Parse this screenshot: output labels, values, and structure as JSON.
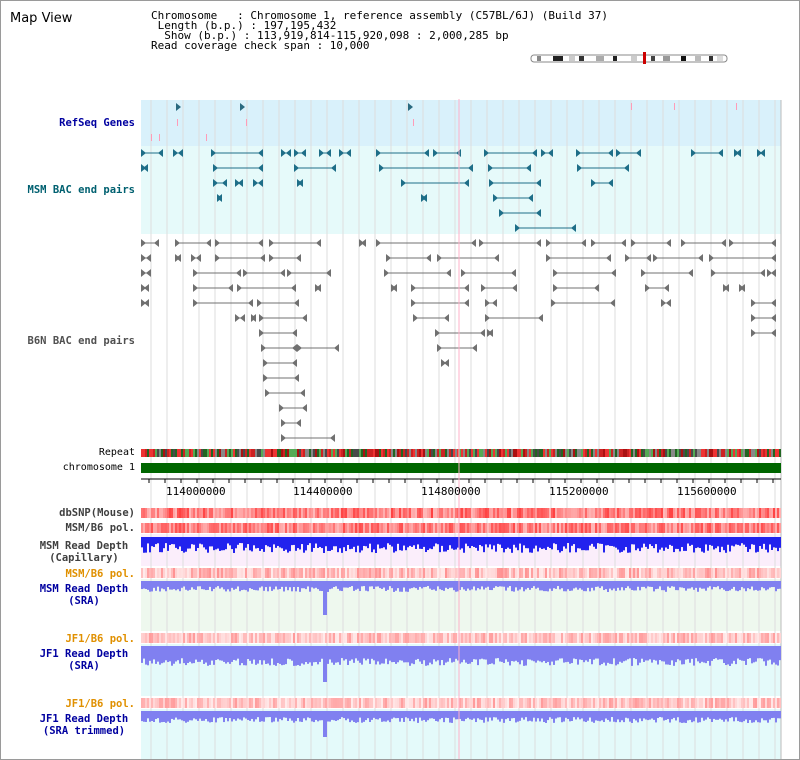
{
  "title": "Map View",
  "info": {
    "line1": "Chromosome   : Chromosome 1, reference assembly (C57BL/6J) (Build 37)",
    "line2": " Length (b.p.) : 197,195,432",
    "line3": "  Show (b.p.) : 113,919,814-115,920,098 : 2,000,285 bp",
    "line4": "Read coverage check span : 10,000"
  },
  "labels": {
    "refseq": "RefSeq Genes",
    "msm_bac": "MSM BAC end pairs",
    "b6n_bac": "B6N BAC end pairs",
    "repeat": "Repeat",
    "chromosome": "chromosome 1",
    "dbsnp": "dbSNP(Mouse)",
    "msm_b6_pol_1": "MSM/B6 pol.",
    "msm_depth_cap_1": "MSM Read Depth",
    "msm_depth_cap_2": "(Capillary)",
    "msm_b6_pol_2": "MSM/B6 pol.",
    "msm_depth_sra_1": "MSM Read Depth",
    "msm_depth_sra_2": "(SRA)",
    "jf1_b6_pol_1": "JF1/B6 pol.",
    "jf1_depth_sra_1": "JF1 Read Depth",
    "jf1_depth_sra_2": "(SRA)",
    "jf1_b6_pol_2": "JF1/B6 pol.",
    "jf1_depth_trim_1": "JF1 Read Depth",
    "jf1_depth_trim_2": "(SRA trimmed)"
  },
  "axis": {
    "ticks": [
      "114000000",
      "114400000",
      "114800000",
      "115200000",
      "115600000"
    ]
  },
  "colors": {
    "refseq_bg": "#d9f1fb",
    "msm_bg": "#e6fafa",
    "chromosome_bar": "#006600",
    "msm_label": "#006070",
    "blue_label": "#0000a0",
    "orange_label": "#e09000",
    "depth_capillary": "#2222ee",
    "depth_sra": "#8080f0"
  }
}
